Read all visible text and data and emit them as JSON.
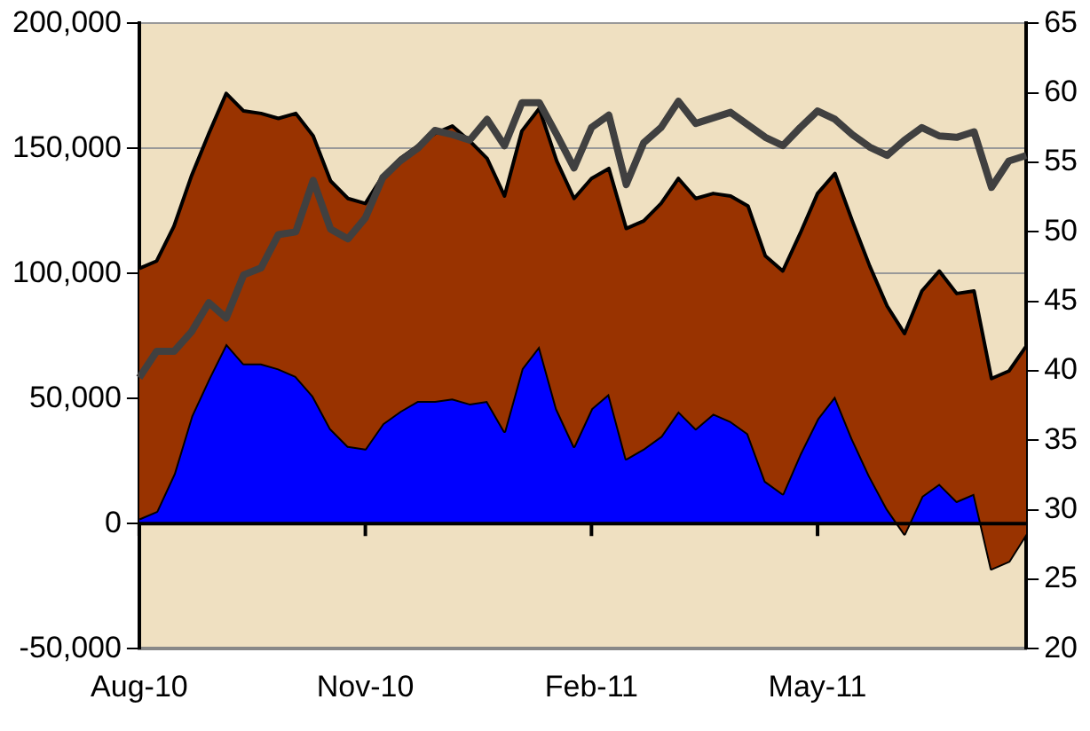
{
  "chart_data": {
    "type": "area",
    "stacked": true,
    "categories": [
      "Aug-10",
      null,
      null,
      null,
      null,
      null,
      null,
      null,
      null,
      null,
      null,
      null,
      null,
      "Nov-10",
      null,
      null,
      null,
      null,
      null,
      null,
      null,
      null,
      null,
      null,
      null,
      null,
      "Feb-11",
      null,
      null,
      null,
      null,
      null,
      null,
      null,
      null,
      null,
      null,
      null,
      null,
      "May-11",
      null,
      null,
      null,
      null,
      null,
      null,
      null,
      null,
      null,
      null,
      null,
      null
    ],
    "series": [
      {
        "color": "#0000ff",
        "values": [
          2000,
          5000,
          20000,
          43000,
          58000,
          72000,
          64000,
          64000,
          62000,
          59000,
          51000,
          38000,
          31000,
          30000,
          40000,
          45000,
          49000,
          49000,
          50000,
          48000,
          49000,
          37000,
          62000,
          71000,
          46000,
          31000,
          46000,
          52000,
          26000,
          30000,
          35000,
          45000,
          38000,
          44000,
          41000,
          36000,
          17000,
          12000,
          28000,
          42000,
          51000,
          34000,
          19000,
          6000,
          -4000,
          11000,
          16000,
          9000,
          12000,
          -18000,
          -15000,
          -4000
        ]
      },
      {
        "color": "#993300",
        "values": [
          100000,
          100000,
          99000,
          96000,
          98000,
          100000,
          101000,
          100000,
          100000,
          105000,
          104000,
          99000,
          99000,
          98000,
          99000,
          101000,
          102000,
          107000,
          109000,
          105000,
          97000,
          94000,
          95000,
          95000,
          99000,
          99000,
          92000,
          90000,
          92000,
          91000,
          93000,
          93000,
          92000,
          88000,
          90000,
          91000,
          90000,
          89000,
          88000,
          90000,
          89000,
          87000,
          84000,
          81000,
          80000,
          82000,
          85000,
          83000,
          81000,
          76000,
          76000,
          75000
        ]
      },
      {
        "type": "line",
        "axis": "y2",
        "color": "#404040",
        "values": [
          39.5,
          41.4,
          41.4,
          42.8,
          44.9,
          43.8,
          46.9,
          47.4,
          49.8,
          50.0,
          53.7,
          50.2,
          49.5,
          51.0,
          53.9,
          55.1,
          56.0,
          57.3,
          57.0,
          56.6,
          58.1,
          56.2,
          59.3,
          59.3,
          57.0,
          54.6,
          57.5,
          58.4,
          53.4,
          56.4,
          57.5,
          59.4,
          57.8,
          58.2,
          58.6,
          57.7,
          56.8,
          56.2,
          57.5,
          58.7,
          58.1,
          57.0,
          56.1,
          55.5,
          56.6,
          57.5,
          56.9,
          56.8,
          57.2,
          53.2,
          55.1,
          55.5
        ]
      }
    ],
    "ylim": [
      -50000,
      200000
    ],
    "yticks": [
      {
        "value": -50000,
        "label": "-50,000"
      },
      {
        "value": 0,
        "label": "0"
      },
      {
        "value": 50000,
        "label": "50,000"
      },
      {
        "value": 100000,
        "label": "100,000"
      },
      {
        "value": 150000,
        "label": "150,000"
      },
      {
        "value": 200000,
        "label": "200,000"
      }
    ],
    "y2lim": [
      20,
      65
    ],
    "y2ticks": [
      20,
      25,
      30,
      35,
      40,
      45,
      50,
      55,
      60,
      65
    ],
    "grid": "y",
    "legend": false,
    "marker": "none",
    "line_style": "solid"
  }
}
